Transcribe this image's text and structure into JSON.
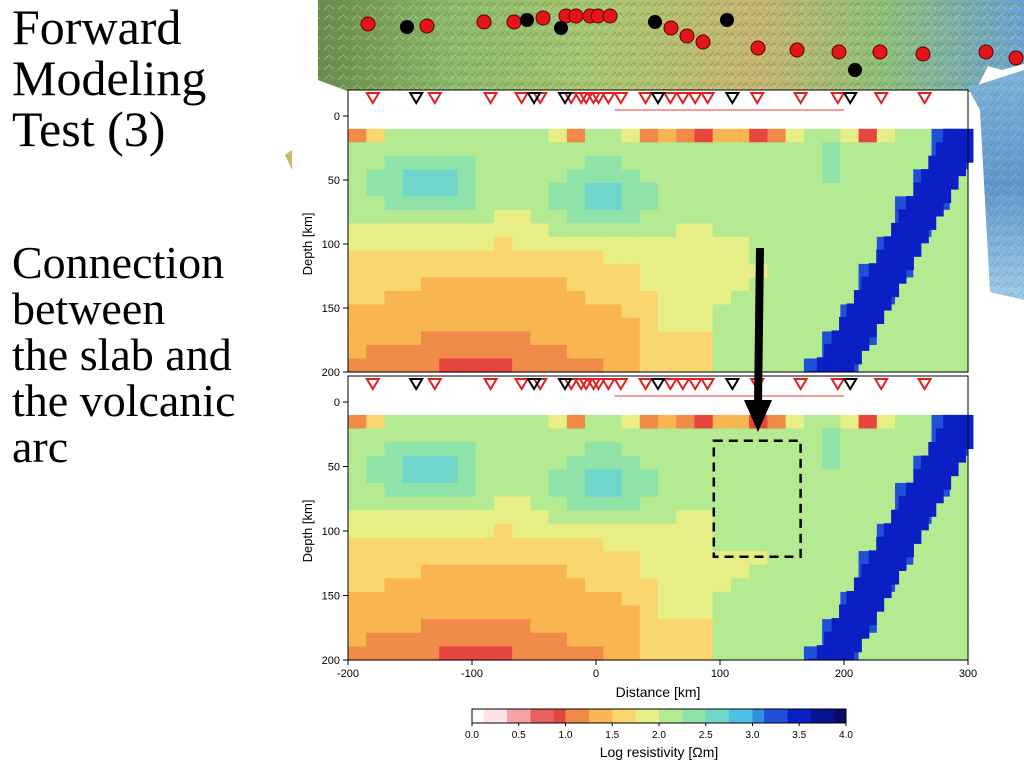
{
  "slide": {
    "title_lines": [
      "Forward",
      "Modeling",
      "Test (3)"
    ],
    "subtitle_lines": [
      "Connection",
      "between",
      "the slab and",
      "the volcanic",
      "arc"
    ]
  },
  "colors": {
    "background": "#ffffff",
    "slab": "#0a1fc4",
    "site_active": "#e02020",
    "site_other": "#000000",
    "map_marker_red": "#e3151b",
    "map_marker_black": "#000000"
  },
  "chart_data": [
    {
      "type": "heatmap",
      "panel": "top",
      "ylabel": "Depth [km]",
      "yticks": [
        0,
        50,
        100,
        150,
        200
      ],
      "ylim": [
        0,
        200
      ],
      "xlim": [
        -200,
        300
      ],
      "sites_red_km": [
        -180,
        -130,
        -85,
        -60,
        -45,
        -20,
        -12,
        -8,
        -2,
        2,
        10,
        20,
        40,
        60,
        70,
        80,
        90,
        130,
        165,
        195,
        230,
        265
      ],
      "sites_black_km": [
        -145,
        -50,
        -25,
        50,
        110,
        205
      ]
    },
    {
      "type": "heatmap",
      "panel": "bottom",
      "ylabel": "Depth [km]",
      "xlabel": "Distance [km]",
      "yticks": [
        0,
        50,
        100,
        150,
        200
      ],
      "xticks": [
        -200,
        -100,
        0,
        100,
        200,
        300
      ],
      "ylim": [
        0,
        200
      ],
      "xlim": [
        -200,
        300
      ],
      "annotation": "dashed box (block connecting slab and volcanic arc)",
      "annotation_box_km": {
        "x": [
          95,
          165
        ],
        "depth": [
          30,
          120
        ]
      }
    }
  ],
  "colorbar": {
    "label": "Log resistivity [Ωm]",
    "ticks": [
      "0.0",
      "0.5",
      "1.0",
      "1.5",
      "2.0",
      "2.5",
      "3.0",
      "3.5",
      "4.0"
    ],
    "colors": [
      "#ffffff",
      "#fde3e6",
      "#f3a2a7",
      "#e96060",
      "#e7463f",
      "#f08a48",
      "#f8b550",
      "#fad76e",
      "#e8ee86",
      "#b4ea91",
      "#8fe3a8",
      "#6fd6cc",
      "#4cc1e6",
      "#2f8fe0",
      "#2050d8",
      "#0a1fc4",
      "#061490",
      "#0c0a6a"
    ]
  }
}
